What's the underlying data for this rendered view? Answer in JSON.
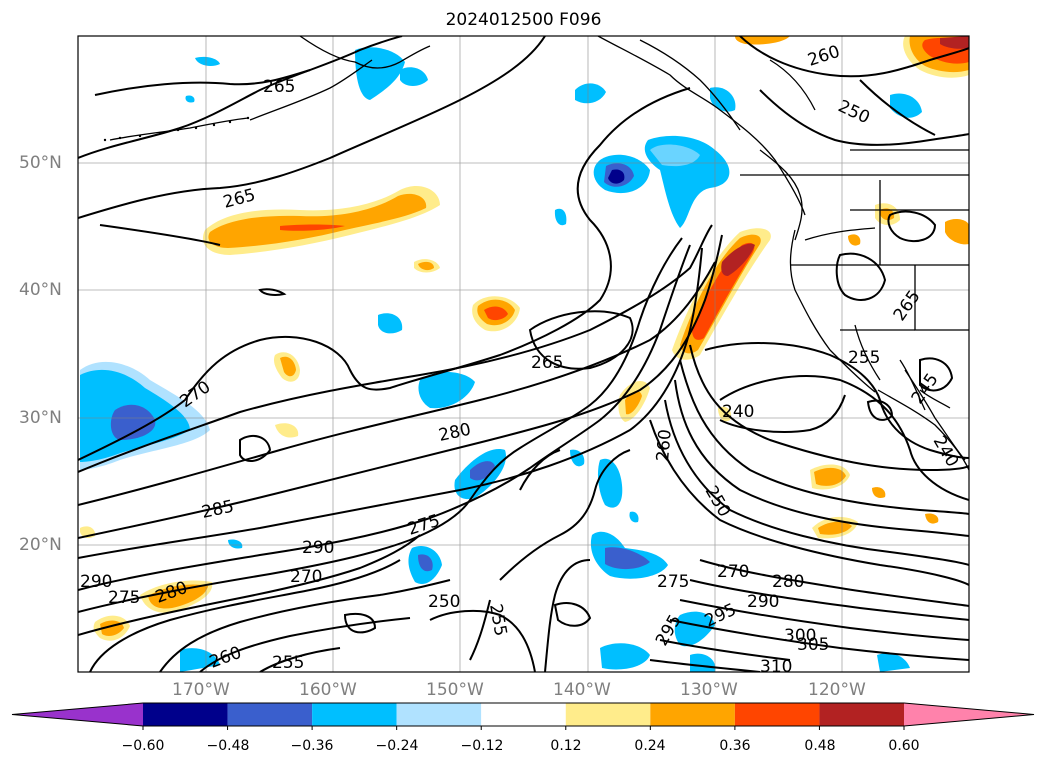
{
  "title": "2024012500 F096",
  "lat_labels": [
    "50°N",
    "40°N",
    "30°N",
    "20°N"
  ],
  "lon_labels": [
    "170°W",
    "160°W",
    "150°W",
    "140°W",
    "130°W",
    "120°W"
  ],
  "contour_labels": [
    "265",
    "265",
    "265",
    "270",
    "280",
    "285",
    "290",
    "270",
    "275",
    "250",
    "255",
    "260",
    "240",
    "250",
    "270",
    "275",
    "280",
    "290",
    "295",
    "300",
    "305",
    "310",
    "260",
    "255",
    "245",
    "240",
    "265",
    "250",
    "255",
    "260",
    "280",
    "275",
    "290",
    "295"
  ],
  "colorbar": {
    "ticks": [
      "−0.60",
      "−0.48",
      "−0.36",
      "−0.24",
      "−0.12",
      "0.12",
      "0.24",
      "0.36",
      "0.48",
      "0.60"
    ],
    "colors": [
      "#9932cc",
      "#00008b",
      "#3a5fcd",
      "#00bfff",
      "#b0e2ff",
      "#ffffff",
      "#ffec8b",
      "#ffa500",
      "#ff4500",
      "#b22222",
      "#ff82ab"
    ]
  }
}
